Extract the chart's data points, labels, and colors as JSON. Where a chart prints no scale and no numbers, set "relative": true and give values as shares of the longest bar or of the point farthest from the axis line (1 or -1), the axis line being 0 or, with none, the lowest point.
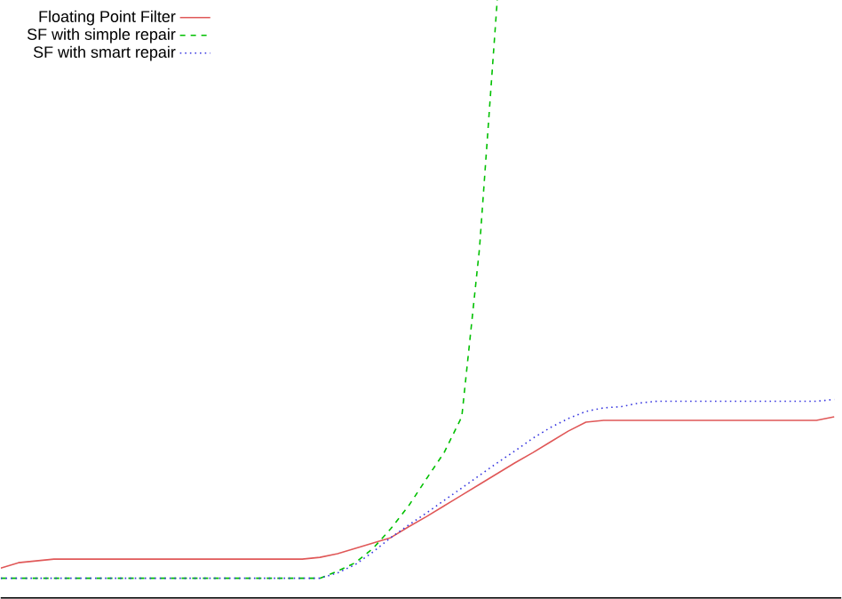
{
  "chart_data": {
    "type": "line",
    "relative": true,
    "legend": "top left",
    "categories": [
      null,
      null,
      null,
      null,
      null,
      null,
      null,
      null,
      null,
      null,
      null,
      null,
      null,
      null,
      null,
      null,
      null,
      null,
      null,
      null,
      null,
      null,
      null,
      null,
      null,
      null,
      null,
      null,
      null,
      null,
      null,
      null,
      null,
      null,
      null,
      null,
      null,
      null,
      null,
      null,
      null,
      null,
      null,
      null,
      null,
      null,
      null,
      null
    ],
    "series": [
      {
        "name": "Floating Point Filter",
        "color": "#e05858",
        "line_style": "solid",
        "values": [
          0.05,
          0.059,
          0.062,
          0.065,
          0.065,
          0.065,
          0.065,
          0.065,
          0.065,
          0.065,
          0.065,
          0.065,
          0.065,
          0.065,
          0.065,
          0.065,
          0.065,
          0.065,
          0.068,
          0.074,
          0.083,
          0.092,
          0.101,
          0.119,
          0.136,
          0.154,
          0.172,
          0.19,
          0.208,
          0.226,
          0.243,
          0.261,
          0.279,
          0.294,
          0.297,
          0.297,
          0.297,
          0.297,
          0.297,
          0.297,
          0.297,
          0.297,
          0.297,
          0.297,
          0.297,
          0.297,
          0.297,
          0.303
        ]
      },
      {
        "name": "SF with simple repair",
        "color": "#00c000",
        "line_style": "dashed",
        "values": [
          0.033,
          0.033,
          0.033,
          0.033,
          0.033,
          0.033,
          0.033,
          0.033,
          0.033,
          0.033,
          0.033,
          0.033,
          0.033,
          0.033,
          0.033,
          0.033,
          0.033,
          0.033,
          0.033,
          0.045,
          0.059,
          0.083,
          0.116,
          0.154,
          0.199,
          0.243,
          0.303,
          0.585,
          1.0,
          null,
          null,
          null,
          null,
          null,
          null,
          null,
          null,
          null,
          null,
          null,
          null,
          null,
          null,
          null,
          null,
          null,
          null,
          null
        ]
      },
      {
        "name": "SF with smart repair",
        "color": "#3838e0",
        "line_style": "dotted",
        "values": [
          0.033,
          0.033,
          0.033,
          0.033,
          0.033,
          0.033,
          0.033,
          0.033,
          0.033,
          0.033,
          0.033,
          0.033,
          0.033,
          0.033,
          0.033,
          0.033,
          0.033,
          0.033,
          0.033,
          0.042,
          0.056,
          0.077,
          0.101,
          0.122,
          0.142,
          0.163,
          0.184,
          0.205,
          0.226,
          0.246,
          0.267,
          0.285,
          0.3,
          0.312,
          0.318,
          0.32,
          0.326,
          0.329,
          0.329,
          0.329,
          0.329,
          0.329,
          0.329,
          0.329,
          0.329,
          0.329,
          0.329,
          0.332
        ]
      }
    ]
  }
}
